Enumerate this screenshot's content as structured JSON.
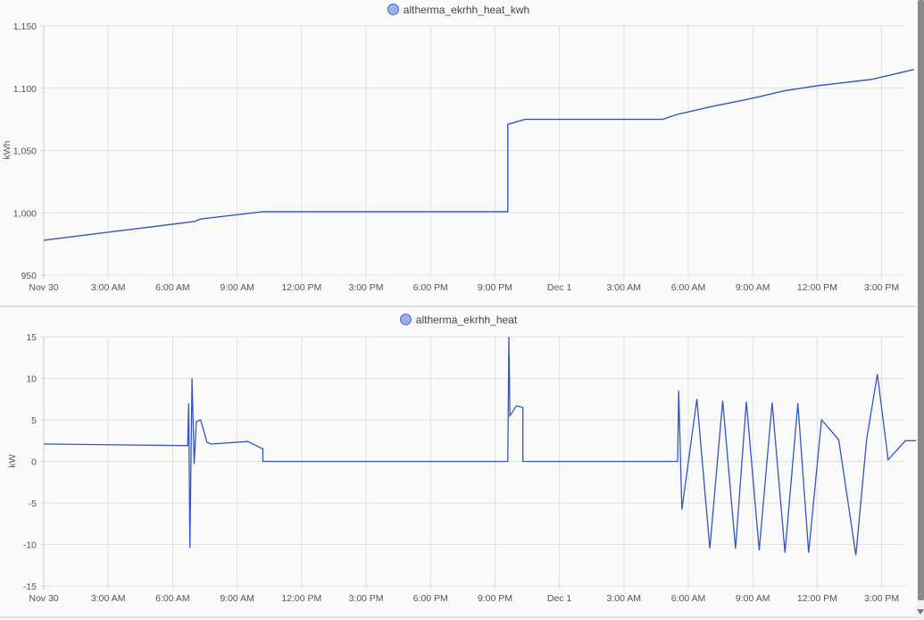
{
  "chart_data": [
    {
      "type": "line",
      "title": "",
      "legend": [
        "altherma_ekrhh_heat_kwh"
      ],
      "legend_position": "top",
      "xlabel": "",
      "ylabel": "kWh",
      "ylim": [
        950,
        1150
      ],
      "yticks": [
        "1,150",
        "1,100",
        "1,050",
        "1,000",
        "950"
      ],
      "ytick_values": [
        1150,
        1100,
        1050,
        1000,
        950
      ],
      "xticks": [
        "Nov 30",
        "3:00 AM",
        "6:00 AM",
        "9:00 AM",
        "12:00 PM",
        "3:00 PM",
        "6:00 PM",
        "9:00 PM",
        "Dec 1",
        "3:00 AM",
        "6:00 AM",
        "9:00 AM",
        "12:00 PM",
        "3:00 PM"
      ],
      "grid": true,
      "color": "#3355c4",
      "x_hours": [
        0,
        7,
        7.3,
        10.2,
        21.6,
        21.6,
        22.4,
        28.8,
        29.5,
        31,
        33,
        34.5,
        36,
        37,
        38.5,
        39.5,
        40.5
      ],
      "series": [
        {
          "name": "altherma_ekrhh_heat_kwh",
          "values": [
            978,
            993,
            995,
            1001,
            1001,
            1071,
            1075,
            1075,
            1079,
            1085,
            1092,
            1098,
            1102,
            1104,
            1107,
            1111,
            1115
          ]
        }
      ]
    },
    {
      "type": "line",
      "title": "",
      "legend": [
        "altherma_ekrhh_heat"
      ],
      "legend_position": "top",
      "xlabel": "",
      "ylabel": "kW",
      "ylim": [
        -15,
        15
      ],
      "yticks": [
        "15",
        "10",
        "5",
        "0",
        "-5",
        "-10",
        "-15"
      ],
      "ytick_values": [
        15,
        10,
        5,
        0,
        -5,
        -10,
        -15
      ],
      "xticks": [
        "Nov 30",
        "3:00 AM",
        "6:00 AM",
        "9:00 AM",
        "12:00 PM",
        "3:00 PM",
        "6:00 PM",
        "9:00 PM",
        "Dec 1",
        "3:00 AM",
        "6:00 AM",
        "9:00 AM",
        "12:00 PM",
        "3:00 PM"
      ],
      "grid": true,
      "color": "#3355c4",
      "x_hours": [
        0,
        6.7,
        6.75,
        6.8,
        6.9,
        7.0,
        7.1,
        7.3,
        7.6,
        7.8,
        9.5,
        10.2,
        10.2,
        21.6,
        21.65,
        21.7,
        22.0,
        22.3,
        22.3,
        29.5,
        29.55,
        29.7,
        30.4,
        31.0,
        31.6,
        32.2,
        32.7,
        33.3,
        33.9,
        34.5,
        35.1,
        35.6,
        36.2,
        37.0,
        37.8,
        38.3,
        38.8,
        39.3,
        40.1,
        40.6
      ],
      "series": [
        {
          "name": "altherma_ekrhh_heat",
          "values": [
            2.1,
            1.9,
            7,
            -10.4,
            10,
            -0.3,
            4.8,
            5,
            2.3,
            2.1,
            2.4,
            1.5,
            0,
            0,
            15,
            5.5,
            6.7,
            6.5,
            0,
            0,
            8.5,
            -5.8,
            7.5,
            -10.5,
            7.3,
            -10.5,
            7.2,
            -10.7,
            7.1,
            -11.0,
            7.0,
            -11.0,
            5.0,
            2.6,
            -11.3,
            2.7,
            10.5,
            0.2,
            2.5,
            2.5
          ]
        }
      ]
    }
  ],
  "top_chart": {
    "legend_label": "altherma_ekrhh_heat_kwh",
    "y_axis_label": "kWh",
    "y_ticks": [
      "1,150",
      "1,100",
      "1,050",
      "1,000",
      "950"
    ],
    "x_ticks": [
      "Nov 30",
      "3:00 AM",
      "6:00 AM",
      "9:00 AM",
      "12:00 PM",
      "3:00 PM",
      "6:00 PM",
      "9:00 PM",
      "Dec 1",
      "3:00 AM",
      "6:00 AM",
      "9:00 AM",
      "12:00 PM",
      "3:00 PM"
    ]
  },
  "bottom_chart": {
    "legend_label": "altherma_ekrhh_heat",
    "y_axis_label": "kW",
    "y_ticks": [
      "15",
      "10",
      "5",
      "0",
      "-5",
      "-10",
      "-15"
    ],
    "x_ticks": [
      "Nov 30",
      "3:00 AM",
      "6:00 AM",
      "9:00 AM",
      "12:00 PM",
      "3:00 PM",
      "6:00 PM",
      "9:00 PM",
      "Dec 1",
      "3:00 AM",
      "6:00 AM",
      "9:00 AM",
      "12:00 PM",
      "3:00 PM"
    ]
  },
  "colors": {
    "line": "#3355c4",
    "grid": "#e0e0e0",
    "legend_fill": "#9bb0e8"
  }
}
